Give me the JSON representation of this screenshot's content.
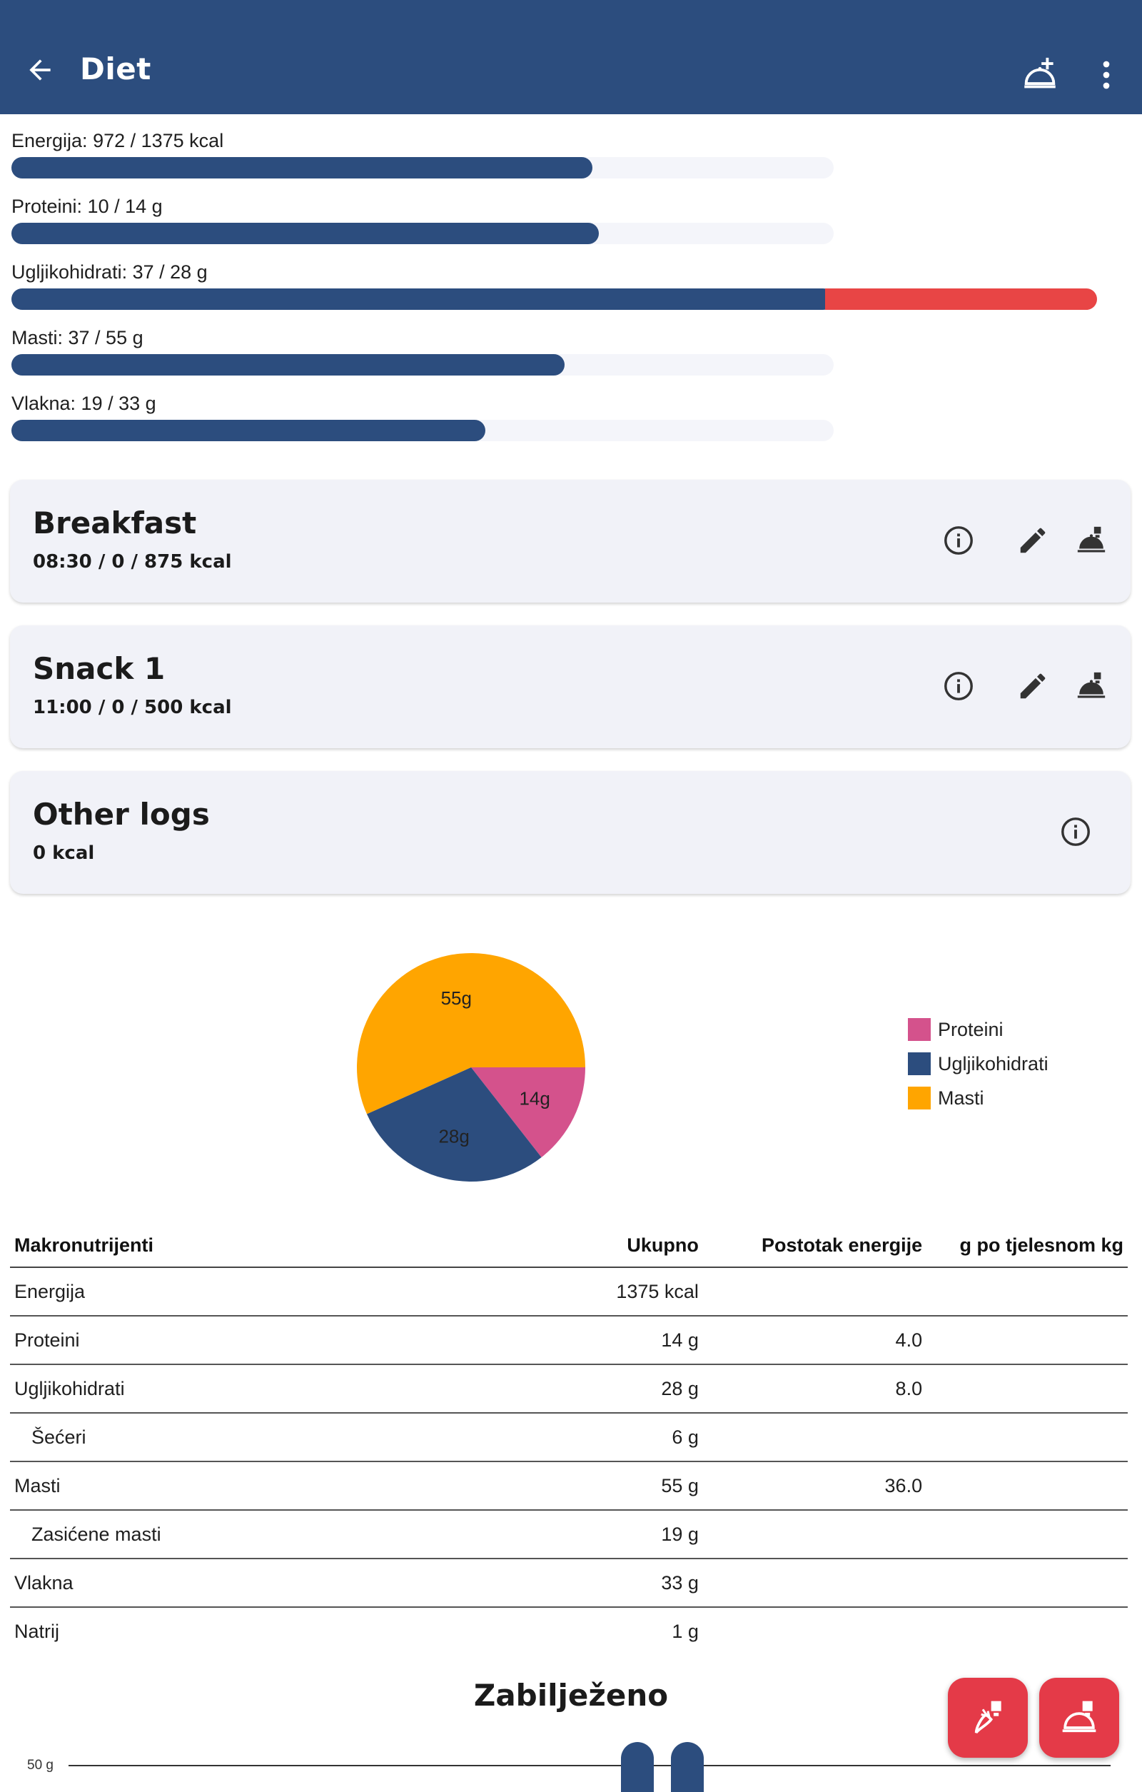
{
  "appbar": {
    "title": "Diet",
    "back_icon": "arrow-back-icon",
    "add_icon": "add-meal-icon",
    "more_icon": "more-vert-icon"
  },
  "progress": [
    {
      "label": "Energija: 972 / 1375 kcal",
      "fraction": 0.707,
      "over_fraction": 0
    },
    {
      "label": "Proteini: 10 / 14 g",
      "fraction": 0.714,
      "over_fraction": 0
    },
    {
      "label": "Ugljikohidrati: 37 / 28 g",
      "fraction": 1.0,
      "over_fraction": 0.32
    },
    {
      "label": "Masti: 37 / 55 g",
      "fraction": 0.673,
      "over_fraction": 0
    },
    {
      "label": "Vlakna: 19 / 33 g",
      "fraction": 0.576,
      "over_fraction": 0
    }
  ],
  "meals": [
    {
      "title": "Breakfast",
      "subtitle": "08:30 /  0 / 875 kcal"
    },
    {
      "title": "Snack 1",
      "subtitle": "11:00 /  0 / 500 kcal"
    },
    {
      "title": "Other logs",
      "subtitle": " 0 kcal"
    }
  ],
  "chart_data": {
    "type": "pie",
    "slices": [
      {
        "name": "Proteini",
        "value": 14,
        "label": "14g",
        "color": "#d4528c"
      },
      {
        "name": "Ugljikohidrati",
        "value": 28,
        "label": "28g",
        "color": "#2c4d7e"
      },
      {
        "name": "Masti",
        "value": 55,
        "label": "55g",
        "color": "#ffa500"
      }
    ],
    "legend": [
      "Proteini",
      "Ugljikohidrati",
      "Masti"
    ],
    "legend_position": "right"
  },
  "table": {
    "headers": [
      "Makronutrijenti",
      "Ukupno",
      "Postotak energije",
      "g po tjelesnom kg"
    ],
    "rows": [
      {
        "name": "Energija",
        "total": "1375 kcal",
        "percent": "",
        "perkg": "",
        "indent": false
      },
      {
        "name": "Proteini",
        "total": "14 g",
        "percent": "4.0",
        "perkg": "",
        "indent": false
      },
      {
        "name": "Ugljikohidrati",
        "total": "28 g",
        "percent": "8.0",
        "perkg": "",
        "indent": false
      },
      {
        "name": "Šećeri",
        "total": "6 g",
        "percent": "",
        "perkg": "",
        "indent": true
      },
      {
        "name": "Masti",
        "total": "55 g",
        "percent": "36.0",
        "perkg": "",
        "indent": false
      },
      {
        "name": "Zasićene masti",
        "total": "19 g",
        "percent": "",
        "perkg": "",
        "indent": true
      },
      {
        "name": "Vlakna",
        "total": "33 g",
        "percent": "",
        "perkg": "",
        "indent": false
      },
      {
        "name": "Natrij",
        "total": "1 g",
        "percent": "",
        "perkg": "",
        "indent": false
      }
    ]
  },
  "logged": {
    "title": "Zabilježeno",
    "axis_label": "50 g"
  },
  "fabs": [
    {
      "icon": "log-food-icon"
    },
    {
      "icon": "log-meal-icon"
    }
  ]
}
